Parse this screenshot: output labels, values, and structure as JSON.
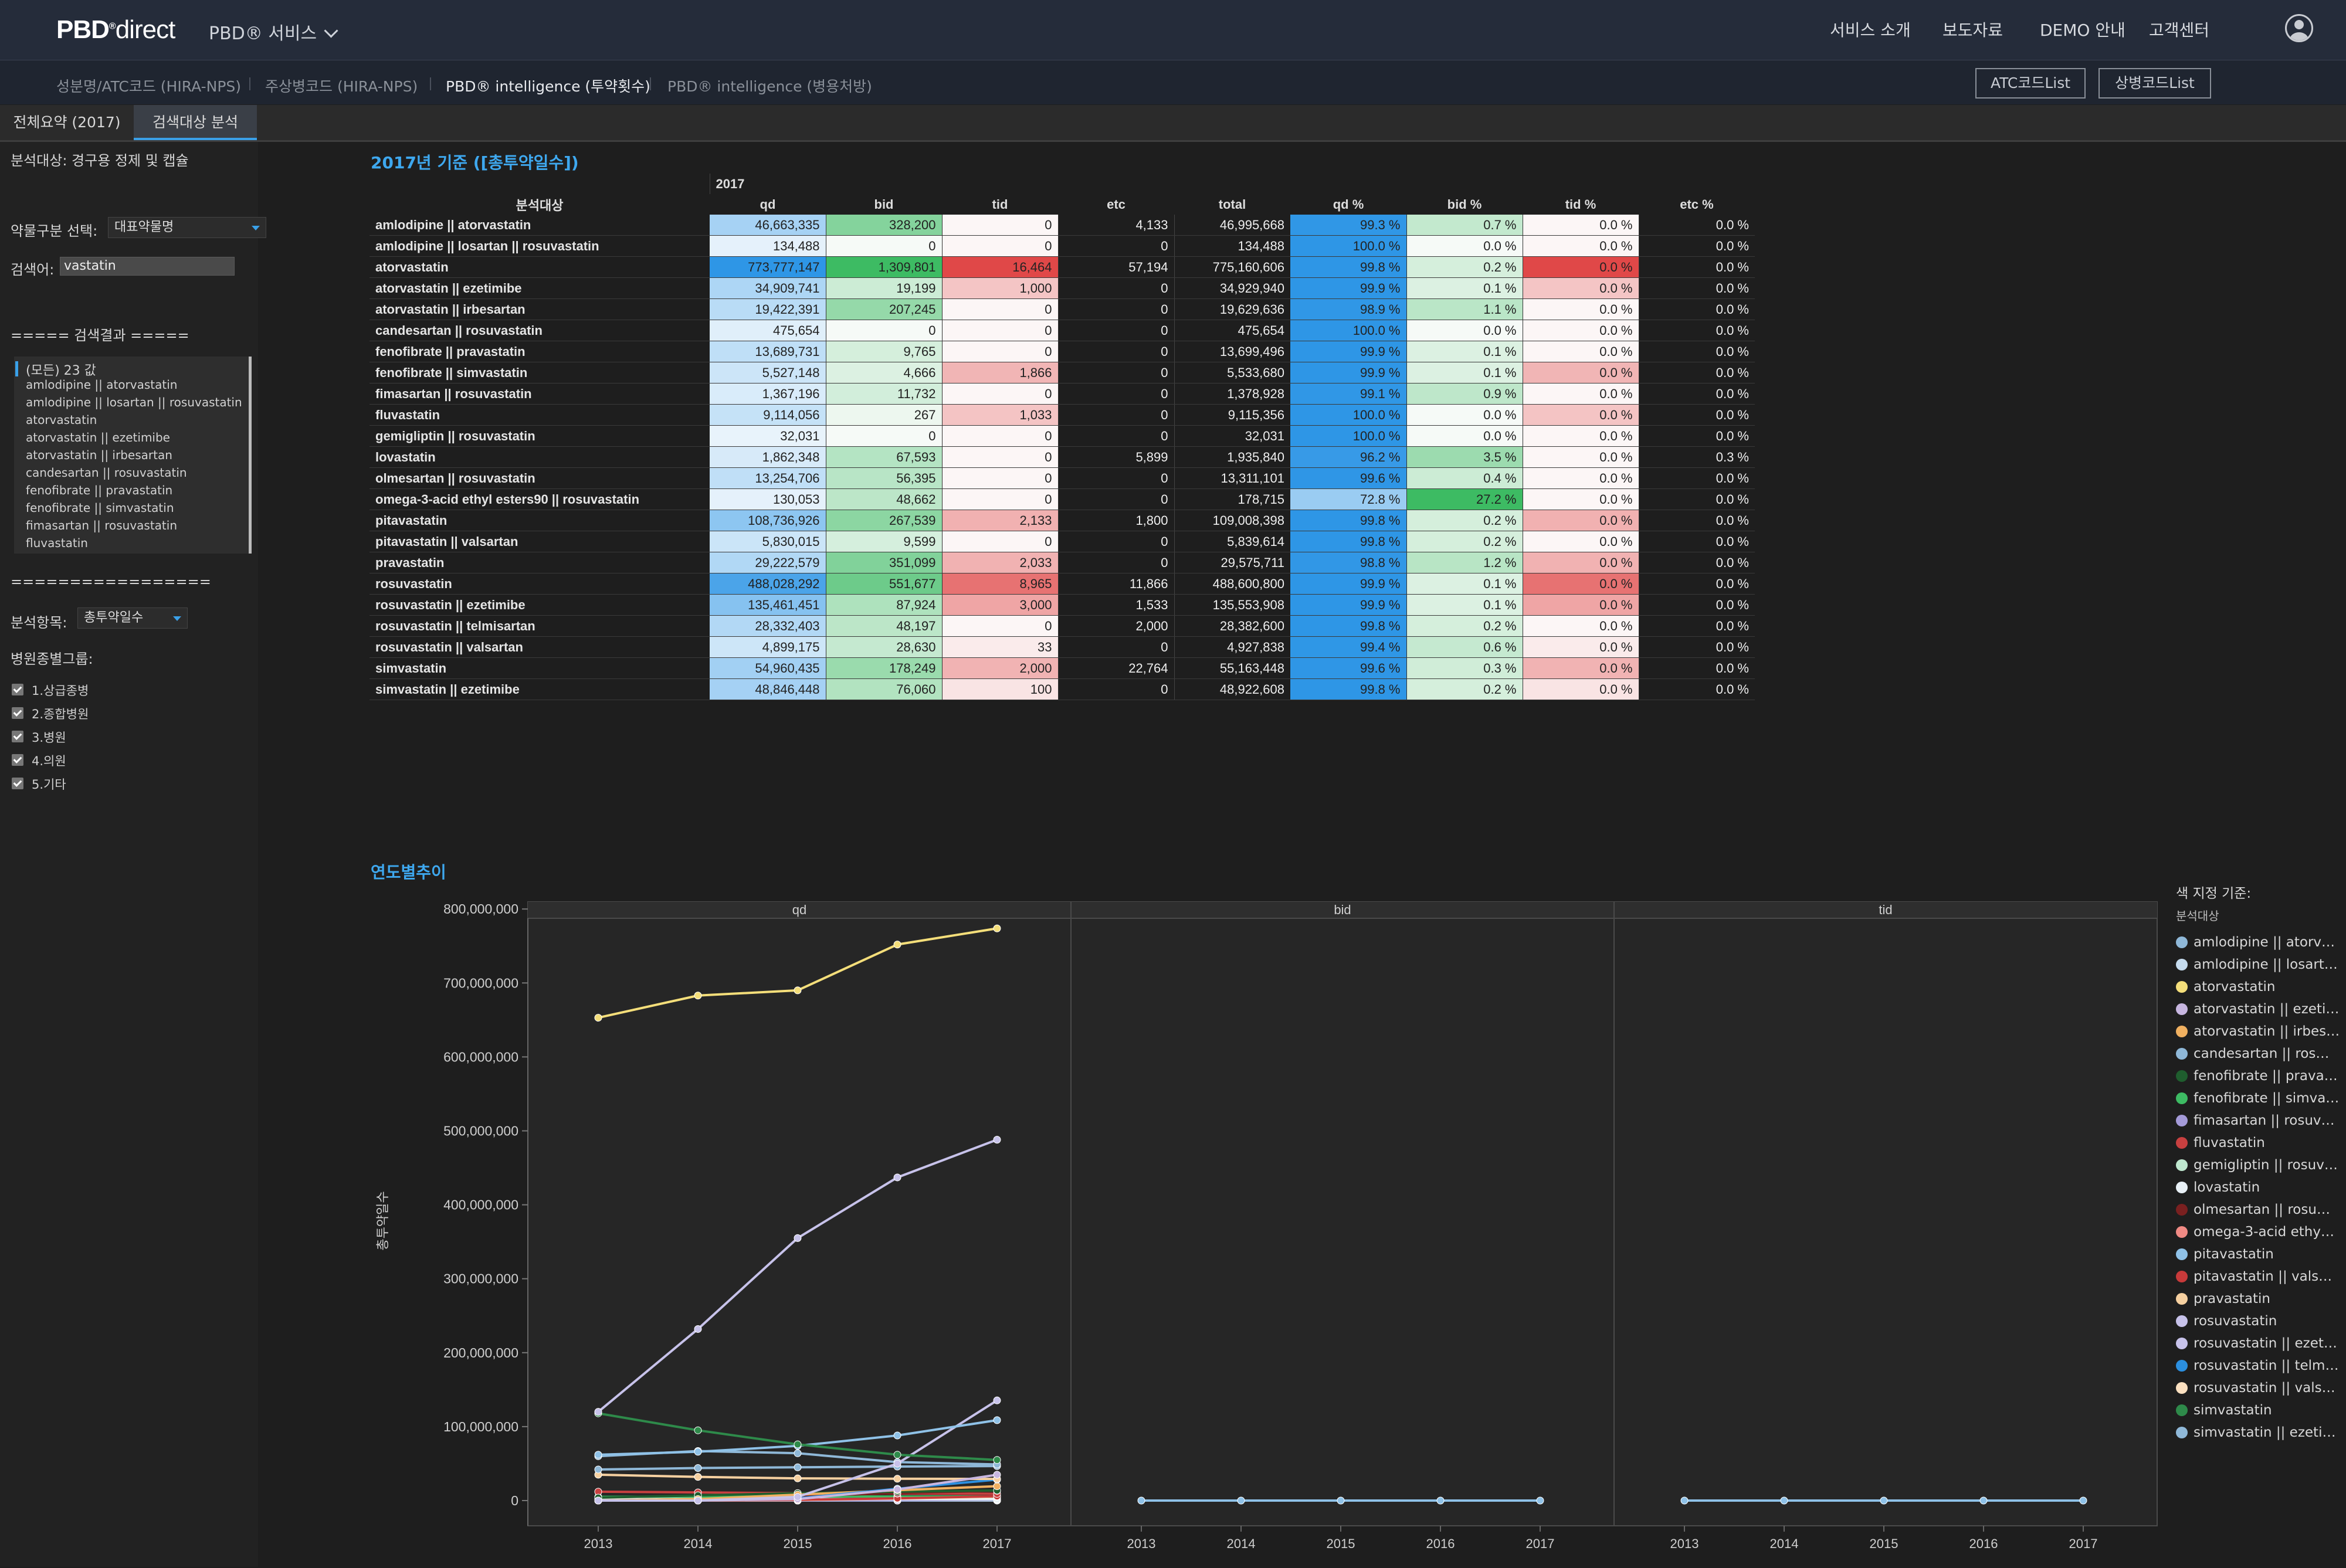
{
  "header": {
    "logo_bold": "PBD",
    "logo_sup": "®",
    "logo_thin": "direct",
    "service_menu": "PBD® 서비스",
    "nav": [
      "서비스 소개",
      "보도자료",
      "DEMO 안내",
      "고객센터"
    ]
  },
  "subnav": {
    "items": [
      "성분명/ATC코드 (HIRA-NPS)",
      "주상병코드 (HIRA-NPS)",
      "PBD® intelligence (투약횟수)",
      "PBD® intelligence (병용처방)"
    ],
    "active_index": 2,
    "buttons": [
      "ATC코드List",
      "상병코드List"
    ]
  },
  "tabs": [
    "전체요약 (2017)",
    "검색대상 분석"
  ],
  "sidebar": {
    "analysis_target": "분석대상: 경구용 정제 및 캡슐",
    "drug_class_label": "약물구분 선택:",
    "drug_class_value": "대표약물명",
    "search_label": "검색어:",
    "search_value": "vastatin",
    "result_header": "===== 검색결과 =====",
    "result_items": [
      "(모든) 23 값",
      "amlodipine || atorvastatin",
      "amlodipine || losartan || rosuvastatin",
      "atorvastatin",
      "atorvastatin || ezetimibe",
      "atorvastatin || irbesartan",
      "candesartan || rosuvastatin",
      "fenofibrate || pravastatin",
      "fenofibrate || simvastatin",
      "fimasartan || rosuvastatin",
      "fluvastatin"
    ],
    "divider": "=================",
    "metric_label": "분석항목:",
    "metric_value": "총투약일수",
    "hospital_group_label": "병원종별그룹:",
    "hospital_groups": [
      "1.상급종병",
      "2.종합병원",
      "3.병원",
      "4.의원",
      "5.기타"
    ]
  },
  "table": {
    "title": "2017년 기준 ([총투약일수])",
    "year": "2017",
    "row_header": "분석대상",
    "columns": [
      "qd",
      "bid",
      "tid",
      "etc",
      "total",
      "qd %",
      "bid %",
      "tid %",
      "etc %"
    ],
    "rows": [
      {
        "name": "amlodipine || atorvastatin",
        "qd": "46,663,335",
        "bid": "328,200",
        "tid": "0",
        "etc": "4,133",
        "total": "46,995,668",
        "qdp": "99.3 %",
        "bidp": "0.7 %",
        "tidp": "0.0 %",
        "etcp": "0.0 %"
      },
      {
        "name": "amlodipine || losartan || rosuvastatin",
        "qd": "134,488",
        "bid": "0",
        "tid": "0",
        "etc": "0",
        "total": "134,488",
        "qdp": "100.0 %",
        "bidp": "0.0 %",
        "tidp": "0.0 %",
        "etcp": "0.0 %"
      },
      {
        "name": "atorvastatin",
        "qd": "773,777,147",
        "bid": "1,309,801",
        "tid": "16,464",
        "etc": "57,194",
        "total": "775,160,606",
        "qdp": "99.8 %",
        "bidp": "0.2 %",
        "tidp": "0.0 %",
        "etcp": "0.0 %"
      },
      {
        "name": "atorvastatin || ezetimibe",
        "qd": "34,909,741",
        "bid": "19,199",
        "tid": "1,000",
        "etc": "0",
        "total": "34,929,940",
        "qdp": "99.9 %",
        "bidp": "0.1 %",
        "tidp": "0.0 %",
        "etcp": "0.0 %"
      },
      {
        "name": "atorvastatin || irbesartan",
        "qd": "19,422,391",
        "bid": "207,245",
        "tid": "0",
        "etc": "0",
        "total": "19,629,636",
        "qdp": "98.9 %",
        "bidp": "1.1 %",
        "tidp": "0.0 %",
        "etcp": "0.0 %"
      },
      {
        "name": "candesartan || rosuvastatin",
        "qd": "475,654",
        "bid": "0",
        "tid": "0",
        "etc": "0",
        "total": "475,654",
        "qdp": "100.0 %",
        "bidp": "0.0 %",
        "tidp": "0.0 %",
        "etcp": "0.0 %"
      },
      {
        "name": "fenofibrate || pravastatin",
        "qd": "13,689,731",
        "bid": "9,765",
        "tid": "0",
        "etc": "0",
        "total": "13,699,496",
        "qdp": "99.9 %",
        "bidp": "0.1 %",
        "tidp": "0.0 %",
        "etcp": "0.0 %"
      },
      {
        "name": "fenofibrate || simvastatin",
        "qd": "5,527,148",
        "bid": "4,666",
        "tid": "1,866",
        "etc": "0",
        "total": "5,533,680",
        "qdp": "99.9 %",
        "bidp": "0.1 %",
        "tidp": "0.0 %",
        "etcp": "0.0 %"
      },
      {
        "name": "fimasartan || rosuvastatin",
        "qd": "1,367,196",
        "bid": "11,732",
        "tid": "0",
        "etc": "0",
        "total": "1,378,928",
        "qdp": "99.1 %",
        "bidp": "0.9 %",
        "tidp": "0.0 %",
        "etcp": "0.0 %"
      },
      {
        "name": "fluvastatin",
        "qd": "9,114,056",
        "bid": "267",
        "tid": "1,033",
        "etc": "0",
        "total": "9,115,356",
        "qdp": "100.0 %",
        "bidp": "0.0 %",
        "tidp": "0.0 %",
        "etcp": "0.0 %"
      },
      {
        "name": "gemigliptin || rosuvastatin",
        "qd": "32,031",
        "bid": "0",
        "tid": "0",
        "etc": "0",
        "total": "32,031",
        "qdp": "100.0 %",
        "bidp": "0.0 %",
        "tidp": "0.0 %",
        "etcp": "0.0 %"
      },
      {
        "name": "lovastatin",
        "qd": "1,862,348",
        "bid": "67,593",
        "tid": "0",
        "etc": "5,899",
        "total": "1,935,840",
        "qdp": "96.2 %",
        "bidp": "3.5 %",
        "tidp": "0.0 %",
        "etcp": "0.3 %"
      },
      {
        "name": "olmesartan || rosuvastatin",
        "qd": "13,254,706",
        "bid": "56,395",
        "tid": "0",
        "etc": "0",
        "total": "13,311,101",
        "qdp": "99.6 %",
        "bidp": "0.4 %",
        "tidp": "0.0 %",
        "etcp": "0.0 %"
      },
      {
        "name": "omega-3-acid ethyl esters90 || rosuvastatin",
        "qd": "130,053",
        "bid": "48,662",
        "tid": "0",
        "etc": "0",
        "total": "178,715",
        "qdp": "72.8 %",
        "bidp": "27.2 %",
        "tidp": "0.0 %",
        "etcp": "0.0 %"
      },
      {
        "name": "pitavastatin",
        "qd": "108,736,926",
        "bid": "267,539",
        "tid": "2,133",
        "etc": "1,800",
        "total": "109,008,398",
        "qdp": "99.8 %",
        "bidp": "0.2 %",
        "tidp": "0.0 %",
        "etcp": "0.0 %"
      },
      {
        "name": "pitavastatin || valsartan",
        "qd": "5,830,015",
        "bid": "9,599",
        "tid": "0",
        "etc": "0",
        "total": "5,839,614",
        "qdp": "99.8 %",
        "bidp": "0.2 %",
        "tidp": "0.0 %",
        "etcp": "0.0 %"
      },
      {
        "name": "pravastatin",
        "qd": "29,222,579",
        "bid": "351,099",
        "tid": "2,033",
        "etc": "0",
        "total": "29,575,711",
        "qdp": "98.8 %",
        "bidp": "1.2 %",
        "tidp": "0.0 %",
        "etcp": "0.0 %"
      },
      {
        "name": "rosuvastatin",
        "qd": "488,028,292",
        "bid": "551,677",
        "tid": "8,965",
        "etc": "11,866",
        "total": "488,600,800",
        "qdp": "99.9 %",
        "bidp": "0.1 %",
        "tidp": "0.0 %",
        "etcp": "0.0 %"
      },
      {
        "name": "rosuvastatin || ezetimibe",
        "qd": "135,461,451",
        "bid": "87,924",
        "tid": "3,000",
        "etc": "1,533",
        "total": "135,553,908",
        "qdp": "99.9 %",
        "bidp": "0.1 %",
        "tidp": "0.0 %",
        "etcp": "0.0 %"
      },
      {
        "name": "rosuvastatin || telmisartan",
        "qd": "28,332,403",
        "bid": "48,197",
        "tid": "0",
        "etc": "2,000",
        "total": "28,382,600",
        "qdp": "99.8 %",
        "bidp": "0.2 %",
        "tidp": "0.0 %",
        "etcp": "0.0 %"
      },
      {
        "name": "rosuvastatin || valsartan",
        "qd": "4,899,175",
        "bid": "28,630",
        "tid": "33",
        "etc": "0",
        "total": "4,927,838",
        "qdp": "99.4 %",
        "bidp": "0.6 %",
        "tidp": "0.0 %",
        "etcp": "0.0 %"
      },
      {
        "name": "simvastatin",
        "qd": "54,960,435",
        "bid": "178,249",
        "tid": "2,000",
        "etc": "22,764",
        "total": "55,163,448",
        "qdp": "99.6 %",
        "bidp": "0.3 %",
        "tidp": "0.0 %",
        "etcp": "0.0 %"
      },
      {
        "name": "simvastatin || ezetimibe",
        "qd": "48,846,448",
        "bid": "76,060",
        "tid": "100",
        "etc": "0",
        "total": "48,922,608",
        "qdp": "99.8 %",
        "bidp": "0.2 %",
        "tidp": "0.0 %",
        "etcp": "0.0 %"
      }
    ]
  },
  "colors": {
    "accent": "#3aa0e8",
    "title_blue": "#3ea8ef",
    "heat_blue": "#3aa0e8",
    "heat_green": "#3dbb63",
    "heat_red": "#e04848"
  },
  "trend": {
    "title": "연도별추이",
    "legend_title": "색 지정 기준:",
    "legend_subtitle": "분석대상",
    "legend_items": [
      {
        "label": "amlodipine || atorv…",
        "color": "#8fb8d8"
      },
      {
        "label": "amlodipine || losart…",
        "color": "#c6dcef"
      },
      {
        "label": "atorvastatin",
        "color": "#f4de7a"
      },
      {
        "label": "atorvastatin || ezeti…",
        "color": "#c7b6e0"
      },
      {
        "label": "atorvastatin || irbes…",
        "color": "#f0b060"
      },
      {
        "label": "candesartan || ros…",
        "color": "#8fb8d8"
      },
      {
        "label": "fenofibrate || prava…",
        "color": "#1f5e2e"
      },
      {
        "label": "fenofibrate || simva…",
        "color": "#3dbb63"
      },
      {
        "label": "fimasartan || rosuv…",
        "color": "#a49ad8"
      },
      {
        "label": "fluvastatin",
        "color": "#c84040"
      },
      {
        "label": "gemigliptin || rosuv…",
        "color": "#bfe8cf"
      },
      {
        "label": "lovastatin",
        "color": "#e8f0f6"
      },
      {
        "label": "olmesartan || rosu…",
        "color": "#7a2020"
      },
      {
        "label": "omega-3-acid ethy…",
        "color": "#f08a84"
      },
      {
        "label": "pitavastatin",
        "color": "#8fc2e8"
      },
      {
        "label": "pitavastatin || vals…",
        "color": "#c83a3a"
      },
      {
        "label": "pravastatin",
        "color": "#f6d0a0"
      },
      {
        "label": "rosuvastatin",
        "color": "#c7c2ea"
      },
      {
        "label": "rosuvastatin || ezet…",
        "color": "#c7c2ea"
      },
      {
        "label": "rosuvastatin || telm…",
        "color": "#2b8fe0"
      },
      {
        "label": "rosuvastatin || vals…",
        "color": "#fbe0c0"
      },
      {
        "label": "simvastatin",
        "color": "#2e8a4a"
      },
      {
        "label": "simvastatin || ezeti…",
        "color": "#8fb8d8"
      }
    ]
  },
  "chart_data": {
    "type": "line",
    "panels": [
      "qd",
      "bid",
      "tid"
    ],
    "x": [
      "2013",
      "2014",
      "2015",
      "2016",
      "2017"
    ],
    "ylabel": "총투약일수",
    "ylim": [
      0,
      830000000
    ],
    "yticks": [
      "0",
      "100,000,000",
      "200,000,000",
      "300,000,000",
      "400,000,000",
      "500,000,000",
      "600,000,000",
      "700,000,000",
      "800,000,000"
    ],
    "series": [
      {
        "name": "atorvastatin",
        "color": "#f4de7a",
        "qd": [
          653000000,
          683000000,
          690000000,
          752000000,
          773777147
        ]
      },
      {
        "name": "rosuvastatin",
        "color": "#c7c2ea",
        "qd": [
          120000000,
          232000000,
          355000000,
          437000000,
          488028292
        ]
      },
      {
        "name": "simvastatin",
        "color": "#2e8a4a",
        "qd": [
          118000000,
          95000000,
          76000000,
          62000000,
          54960435
        ]
      },
      {
        "name": "pitavastatin",
        "color": "#8fc2e8",
        "qd": [
          62000000,
          66000000,
          74000000,
          88000000,
          108736926
        ]
      },
      {
        "name": "rosuvastatin || ezetimibe",
        "color": "#c7c2ea",
        "qd": [
          0,
          0,
          5000000,
          50000000,
          135461451
        ]
      },
      {
        "name": "simvastatin || ezetimibe",
        "color": "#8fb8d8",
        "qd": [
          60000000,
          67000000,
          64000000,
          52000000,
          48846448
        ]
      },
      {
        "name": "amlodipine || atorvastatin",
        "color": "#8fb8d8",
        "qd": [
          42000000,
          44000000,
          45000000,
          46000000,
          46663335
        ]
      },
      {
        "name": "atorvastatin || ezetimibe",
        "color": "#c7b6e0",
        "qd": [
          0,
          0,
          2000000,
          15000000,
          34909741
        ]
      },
      {
        "name": "pravastatin",
        "color": "#f6d0a0",
        "qd": [
          35000000,
          32000000,
          30000000,
          29500000,
          29222579
        ]
      },
      {
        "name": "rosuvastatin || telmisartan",
        "color": "#2b8fe0",
        "qd": [
          0,
          0,
          3000000,
          16000000,
          28332403
        ]
      },
      {
        "name": "atorvastatin || irbesartan",
        "color": "#f0b060",
        "qd": [
          0,
          2000000,
          8000000,
          14000000,
          19422391
        ]
      },
      {
        "name": "fenofibrate || pravastatin",
        "color": "#1f5e2e",
        "qd": [
          4000000,
          7000000,
          10000000,
          12000000,
          13689731
        ]
      },
      {
        "name": "olmesartan || rosuvastatin",
        "color": "#7a2020",
        "qd": [
          0,
          2000000,
          6000000,
          10000000,
          13254706
        ]
      },
      {
        "name": "fluvastatin",
        "color": "#c84040",
        "qd": [
          12000000,
          11000000,
          10000000,
          9500000,
          9114056
        ]
      },
      {
        "name": "pitavastatin || valsartan",
        "color": "#c83a3a",
        "qd": [
          0,
          0,
          1000000,
          3000000,
          5830015
        ]
      },
      {
        "name": "fenofibrate || simvastatin",
        "color": "#3dbb63",
        "qd": [
          5000000,
          5500000,
          5500000,
          5500000,
          5527148
        ]
      },
      {
        "name": "rosuvastatin || valsartan",
        "color": "#fbe0c0",
        "qd": [
          0,
          0,
          500000,
          2500000,
          4899175
        ]
      },
      {
        "name": "lovastatin",
        "color": "#e8f0f6",
        "qd": [
          3000000,
          2500000,
          2200000,
          2000000,
          1862348
        ]
      },
      {
        "name": "fimasartan || rosuvastatin",
        "color": "#a49ad8",
        "qd": [
          0,
          0,
          0,
          500000,
          1367196
        ]
      },
      {
        "name": "candesartan || rosuvastatin",
        "color": "#8fb8d8",
        "qd": [
          0,
          0,
          0,
          100000,
          475654
        ]
      },
      {
        "name": "amlodipine || losartan || rosuvastatin",
        "color": "#c6dcef",
        "qd": [
          0,
          0,
          0,
          0,
          134488
        ]
      },
      {
        "name": "omega-3-acid ethyl esters90 || rosuvastatin",
        "color": "#f08a84",
        "qd": [
          0,
          0,
          0,
          50000,
          130053
        ]
      },
      {
        "name": "gemigliptin || rosuvastatin",
        "color": "#bfe8cf",
        "qd": [
          0,
          0,
          0,
          0,
          32031
        ]
      }
    ]
  }
}
